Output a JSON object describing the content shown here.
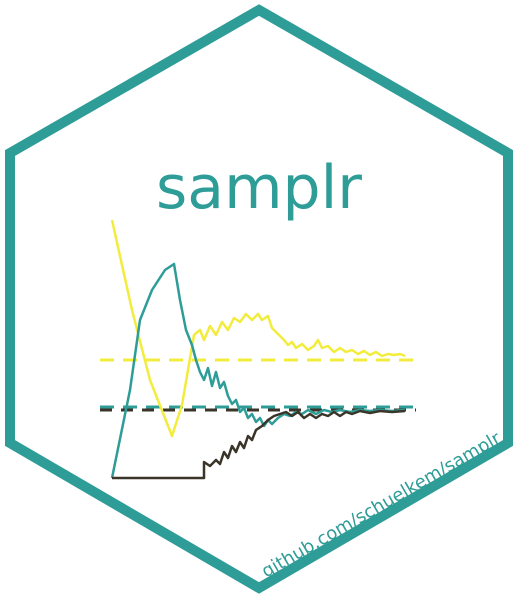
{
  "title": "samplr",
  "url": "github.com/schuelkem/samplr",
  "colors": {
    "border": "#2e9c97",
    "title": "#2e9c97",
    "yellow": "#f2ec3c",
    "teal": "#2e9c97",
    "dark": "#3a3528"
  },
  "icons": [
    "hexagon-border",
    "sampler-trace-plot"
  ]
}
